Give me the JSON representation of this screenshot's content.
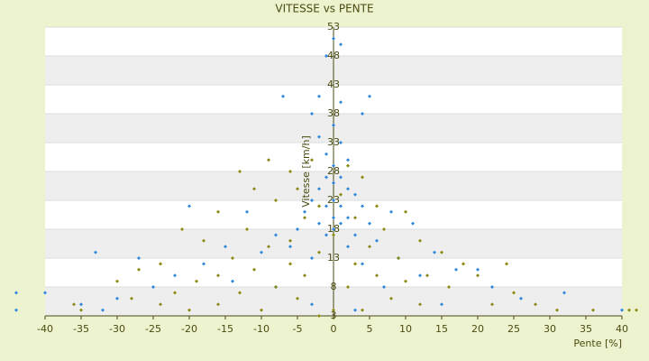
{
  "chart_data": {
    "type": "scatter",
    "title": "VITESSE vs PENTE",
    "x_label": "Pente [%]",
    "y_label": "Vitesse [km/h]",
    "xlim": [
      -40,
      40
    ],
    "xticks": [
      -40,
      -35,
      -30,
      -25,
      -20,
      -15,
      -10,
      -5,
      0,
      5,
      10,
      15,
      20,
      25,
      30,
      35,
      40
    ],
    "ylim": [
      3,
      53
    ],
    "yticks": [
      3,
      8,
      13,
      18,
      23,
      28,
      33,
      38,
      43,
      48,
      53
    ],
    "series": [
      {
        "color": "#2e86de",
        "x": [
          0,
          1,
          -1,
          -7,
          -2,
          5,
          1,
          -3,
          4,
          0,
          -2,
          1,
          -1,
          2,
          0,
          -1,
          1,
          0,
          2,
          -2,
          3,
          -3,
          0,
          1,
          -1,
          4,
          -4,
          0,
          2,
          -2,
          1,
          5,
          -5,
          0,
          -1,
          3,
          -20,
          -12,
          8,
          11,
          -8,
          6,
          -15,
          -6,
          2,
          14,
          -10,
          -27,
          -33,
          9,
          -3,
          4,
          -18,
          17,
          20,
          -22,
          12,
          -14,
          -25,
          7,
          -8,
          22,
          -30,
          26,
          -40,
          -44,
          32,
          -35,
          -32,
          -44,
          40,
          15,
          -3,
          3
        ],
        "values": [
          51,
          50,
          48,
          41,
          41,
          41,
          40,
          38,
          38,
          36,
          34,
          33,
          31,
          30,
          29,
          27,
          27,
          26,
          25,
          25,
          24,
          23,
          23,
          22,
          22,
          22,
          21,
          20,
          20,
          19,
          19,
          19,
          18,
          18,
          17,
          17,
          22,
          21,
          21,
          19,
          17,
          16,
          15,
          15,
          15,
          14,
          14,
          13,
          14,
          13,
          13,
          12,
          12,
          11,
          11,
          10,
          10,
          9,
          8,
          8,
          8,
          8,
          6,
          6,
          7,
          7,
          7,
          5,
          4,
          4,
          4,
          5,
          5,
          4
        ]
      },
      {
        "color": "#8a8a10",
        "x": [
          -9,
          -3,
          2,
          -13,
          -6,
          4,
          -11,
          -5,
          1,
          -8,
          6,
          -2,
          -16,
          10,
          -4,
          3,
          -21,
          -12,
          7,
          0,
          -6,
          12,
          -18,
          5,
          -9,
          -2,
          15,
          -14,
          9,
          -24,
          3,
          -6,
          18,
          -11,
          24,
          -27,
          13,
          -4,
          6,
          -16,
          20,
          -30,
          -19,
          10,
          -8,
          2,
          16,
          -13,
          -22,
          25,
          -5,
          8,
          -28,
          -16,
          12,
          22,
          -10,
          4,
          -35,
          -20,
          0,
          31,
          36,
          41,
          42,
          -36,
          -24,
          28,
          -2
        ],
        "values": [
          30,
          30,
          29,
          28,
          28,
          27,
          25,
          25,
          24,
          23,
          22,
          22,
          21,
          21,
          20,
          20,
          18,
          18,
          18,
          17,
          16,
          16,
          16,
          15,
          15,
          14,
          14,
          13,
          13,
          12,
          12,
          12,
          12,
          11,
          12,
          11,
          10,
          10,
          10,
          10,
          10,
          9,
          9,
          9,
          8,
          8,
          8,
          7,
          7,
          7,
          6,
          6,
          6,
          5,
          5,
          5,
          4,
          4,
          4,
          4,
          4,
          4,
          4,
          4,
          4,
          5,
          5,
          5,
          3
        ]
      }
    ]
  }
}
